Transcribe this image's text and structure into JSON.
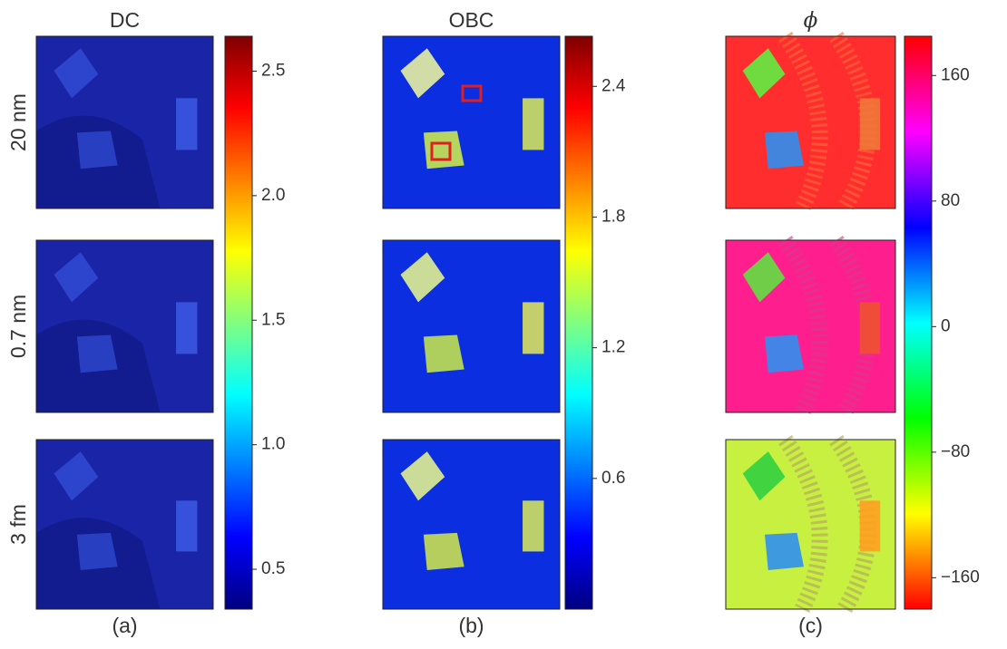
{
  "columns": [
    {
      "title": "DC",
      "label": "(a)",
      "cmap": "jet",
      "lim": [
        0.34,
        2.64
      ],
      "ticks": [
        0.5,
        {
          "value": 1.0,
          "label": "1.0"
        },
        1.5,
        {
          "value": 2.0,
          "label": "2.0"
        },
        2.5
      ]
    },
    {
      "title": "OBC",
      "label": "(b)",
      "cmap": "jet",
      "lim": [
        0,
        2.63
      ],
      "ticks": [
        0.6,
        1.2,
        1.8,
        2.4
      ]
    },
    {
      "title": "ϕ",
      "label": "(c)",
      "cmap": "hsv",
      "lim": [
        -180,
        185
      ],
      "ticks": [
        {
          "value": -160,
          "label": "−160"
        },
        {
          "value": -80,
          "label": "−80"
        },
        0,
        80,
        160
      ]
    }
  ],
  "rows": [
    "20 nm",
    "0.7 nm",
    "3 fm"
  ]
}
